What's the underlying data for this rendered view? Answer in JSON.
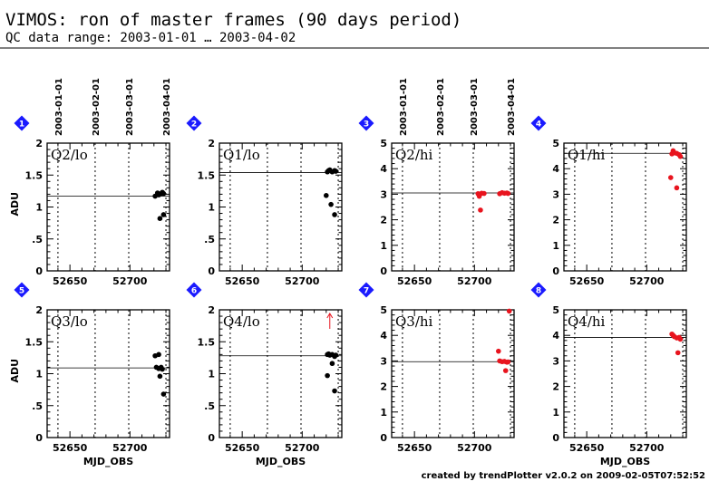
{
  "header": {
    "title": "VIMOS: ron of master frames (90 days period)",
    "subtitle": "QC data range: 2003-01-01 … 2003-04-02"
  },
  "footer": {
    "credit": "created by trendPlotter v2.0.2 on 2009-02-05T07:52:52"
  },
  "colors": {
    "badge": "#1a1aff",
    "points_lo": "#000000",
    "points_hi": "#e8141e",
    "outlier_arrow": "#e8141e"
  },
  "date_ticks": [
    {
      "label": "2003-01-01",
      "mjd": 52640
    },
    {
      "label": "2003-02-01",
      "mjd": 52671
    },
    {
      "label": "2003-03-01",
      "mjd": 52699
    },
    {
      "label": "2003-04-01",
      "mjd": 52730
    }
  ],
  "chart_data": [
    {
      "type": "scatter",
      "badge": "1",
      "label": "Q2/lo",
      "ylabel": "ADU",
      "xlabel": "",
      "xlim": [
        52631,
        52733
      ],
      "ylim": [
        0,
        2
      ],
      "xticks": [
        52650,
        52700
      ],
      "yticks": [
        0,
        0.5,
        1,
        1.5,
        2
      ],
      "ytick_labels": [
        "0",
        ".5",
        "1",
        "1.5",
        "2"
      ],
      "reference": 1.17,
      "color": "#000000",
      "x": [
        52721,
        52723,
        52724,
        52726,
        52727,
        52728,
        52725,
        52728
      ],
      "y": [
        1.17,
        1.22,
        1.19,
        1.21,
        1.23,
        1.21,
        0.82,
        0.88
      ]
    },
    {
      "type": "scatter",
      "badge": "2",
      "label": "Q1/lo",
      "ylabel": "",
      "xlabel": "",
      "xlim": [
        52631,
        52733
      ],
      "ylim": [
        0,
        2
      ],
      "xticks": [
        52650,
        52700
      ],
      "yticks": [
        0,
        0.5,
        1,
        1.5,
        2
      ],
      "ytick_labels": [
        "0",
        ".5",
        "1",
        "1.5",
        "2"
      ],
      "reference": 1.54,
      "color": "#000000",
      "x": [
        52721,
        52722,
        52723,
        52725,
        52727,
        52728,
        52720,
        52724,
        52727
      ],
      "y": [
        1.55,
        1.57,
        1.58,
        1.55,
        1.57,
        1.56,
        1.18,
        1.04,
        0.88
      ]
    },
    {
      "type": "scatter",
      "badge": "3",
      "label": "Q2/hi",
      "ylabel": "",
      "xlabel": "",
      "xlim": [
        52631,
        52733
      ],
      "ylim": [
        0,
        5
      ],
      "xticks": [
        52650,
        52700
      ],
      "yticks": [
        0,
        1,
        2,
        3,
        4,
        5
      ],
      "ytick_labels": [
        "0",
        "1",
        "2",
        "3",
        "4",
        "5"
      ],
      "reference": 3.05,
      "color": "#e8141e",
      "x": [
        52703,
        52704,
        52706,
        52708,
        52705,
        52721,
        52723,
        52725,
        52727,
        52728
      ],
      "y": [
        3.02,
        2.92,
        3.04,
        3.03,
        2.38,
        3.02,
        3.06,
        3.04,
        3.05,
        3.03
      ]
    },
    {
      "type": "scatter",
      "badge": "4",
      "label": "Q1/hi",
      "ylabel": "",
      "xlabel": "",
      "xlim": [
        52631,
        52733
      ],
      "ylim": [
        0,
        5
      ],
      "xticks": [
        52650,
        52700
      ],
      "yticks": [
        0,
        1,
        2,
        3,
        4,
        5
      ],
      "ytick_labels": [
        "0",
        "1",
        "2",
        "3",
        "4",
        "5"
      ],
      "reference": 4.6,
      "color": "#e8141e",
      "x": [
        52721,
        52722,
        52723,
        52725,
        52727,
        52728,
        52720,
        52725
      ],
      "y": [
        4.58,
        4.7,
        4.62,
        4.6,
        4.55,
        4.48,
        3.65,
        3.25
      ]
    },
    {
      "type": "scatter",
      "badge": "5",
      "label": "Q3/lo",
      "ylabel": "ADU",
      "xlabel": "MJD_OBS",
      "xlim": [
        52631,
        52733
      ],
      "ylim": [
        0,
        2
      ],
      "xticks": [
        52650,
        52700
      ],
      "yticks": [
        0,
        0.5,
        1,
        1.5,
        2
      ],
      "ytick_labels": [
        "0",
        ".5",
        "1",
        "1.5",
        "2"
      ],
      "reference": 1.09,
      "color": "#000000",
      "x": [
        52721,
        52724,
        52722,
        52724,
        52726,
        52727,
        52725,
        52728
      ],
      "y": [
        1.28,
        1.3,
        1.1,
        1.08,
        1.1,
        1.07,
        0.96,
        0.68
      ]
    },
    {
      "type": "scatter",
      "badge": "6",
      "label": "Q4/lo",
      "ylabel": "",
      "xlabel": "MJD_OBS",
      "xlim": [
        52631,
        52733
      ],
      "ylim": [
        0,
        2
      ],
      "xticks": [
        52650,
        52700
      ],
      "yticks": [
        0,
        0.5,
        1,
        1.5,
        2
      ],
      "ytick_labels": [
        "0",
        ".5",
        "1",
        "1.5",
        "2"
      ],
      "reference": 1.28,
      "color": "#000000",
      "x": [
        52721,
        52722,
        52723,
        52725,
        52727,
        52728,
        52721,
        52725,
        52727
      ],
      "y": [
        1.3,
        1.31,
        1.29,
        1.3,
        1.27,
        1.29,
        0.97,
        1.16,
        0.73
      ],
      "outlier_arrow_x": 52723
    },
    {
      "type": "scatter",
      "badge": "7",
      "label": "Q3/hi",
      "ylabel": "",
      "xlabel": "",
      "xlim": [
        52631,
        52733
      ],
      "ylim": [
        0,
        5
      ],
      "xticks": [
        52650,
        52700
      ],
      "yticks": [
        0,
        1,
        2,
        3,
        4,
        5
      ],
      "ytick_labels": [
        "0",
        "1",
        "2",
        "3",
        "4",
        "5"
      ],
      "reference": 2.97,
      "color": "#e8141e",
      "x": [
        52720,
        52721,
        52723,
        52725,
        52727,
        52728,
        52726,
        52729
      ],
      "y": [
        3.38,
        3.0,
        2.97,
        2.98,
        2.95,
        2.96,
        2.62,
        4.95
      ]
    },
    {
      "type": "scatter",
      "badge": "8",
      "label": "Q4/hi",
      "ylabel": "",
      "xlabel": "MJD_OBS",
      "xlim": [
        52631,
        52733
      ],
      "ylim": [
        0,
        5
      ],
      "xticks": [
        52650,
        52700
      ],
      "yticks": [
        0,
        1,
        2,
        3,
        4,
        5
      ],
      "ytick_labels": [
        "0",
        "1",
        "2",
        "3",
        "4",
        "5"
      ],
      "reference": 3.92,
      "color": "#e8141e",
      "x": [
        52721,
        52722,
        52723,
        52725,
        52727,
        52728,
        52726
      ],
      "y": [
        4.05,
        4.0,
        3.95,
        3.9,
        3.92,
        3.85,
        3.32
      ]
    }
  ]
}
